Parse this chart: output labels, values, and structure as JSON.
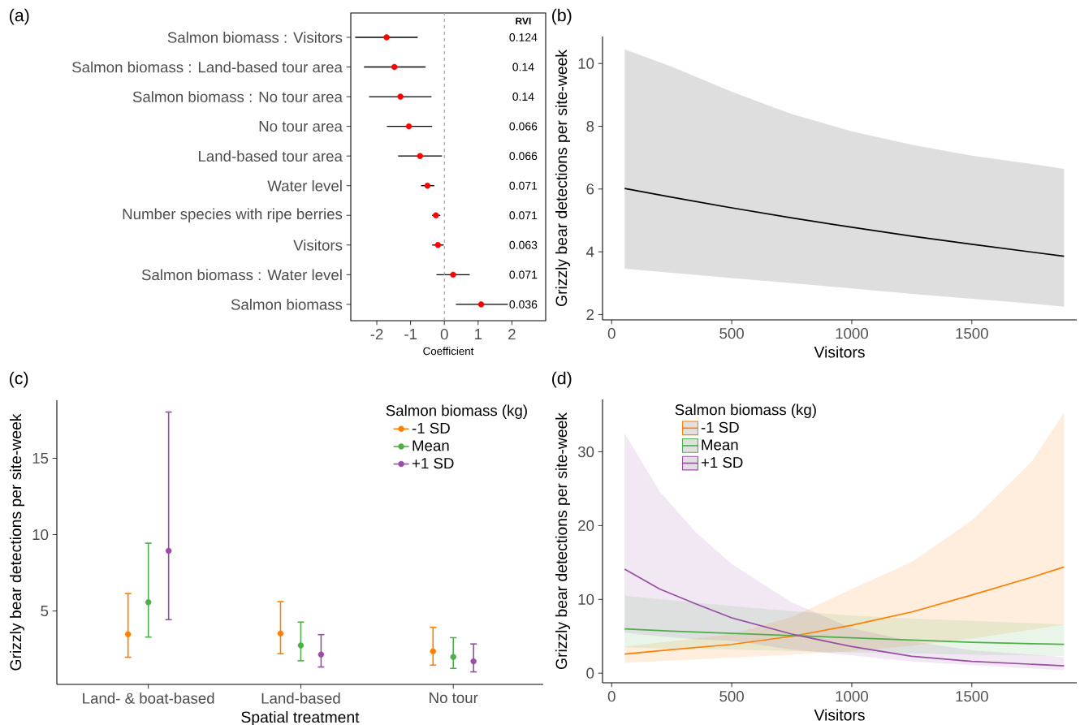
{
  "chart_data": [
    {
      "type": "scatter",
      "title": "(a)",
      "xlabel": "Coefficient",
      "orientation": "horizontal",
      "marker": "circle",
      "color": "#ff0000",
      "categories": [
        "Salmon biomass : Visitors",
        "Salmon biomass : Land-based tour area",
        "Salmon biomass : No tour area",
        "No tour area",
        "Land-based tour area",
        "Water level",
        "Number species with ripe berries",
        "Visitors",
        "Salmon biomass : Water level",
        "Salmon biomass"
      ],
      "values": [
        -1.71,
        -1.48,
        -1.3,
        -1.05,
        -0.72,
        -0.5,
        -0.25,
        -0.19,
        0.26,
        1.09
      ],
      "errors": [
        [
          -2.64,
          -0.79
        ],
        [
          -2.38,
          -0.56
        ],
        [
          -2.23,
          -0.38
        ],
        [
          -1.7,
          -0.36
        ],
        [
          -1.37,
          -0.07
        ],
        [
          -0.69,
          -0.3
        ],
        [
          -0.36,
          -0.12
        ],
        [
          -0.36,
          -0.02
        ],
        [
          -0.23,
          0.75
        ],
        [
          0.34,
          1.88
        ]
      ],
      "xlim": [
        -2.77,
        3.0
      ],
      "xticks": [
        -2,
        -1,
        0,
        1,
        2
      ],
      "ref_lines": [
        {
          "axis": "x",
          "value": 0,
          "line_style": "dashed",
          "color": "#999999"
        }
      ],
      "annotations": [
        "RVI",
        "0.124",
        "0.14",
        "0.14",
        "0.066",
        "0.066",
        "0.071",
        "0.071",
        "0.063",
        "0.071",
        "0.036"
      ]
    },
    {
      "type": "line",
      "title": "(b)",
      "xlabel": "Visitors",
      "ylabel": "Grizzly bear detections per site-week",
      "series": [
        {
          "color": "#000000",
          "x": [
            54,
            250,
            500,
            750,
            1000,
            1250,
            1500,
            1750,
            1884
          ],
          "values": [
            6.02,
            5.74,
            5.4,
            5.08,
            4.78,
            4.5,
            4.24,
            3.99,
            3.86
          ],
          "lower": [
            3.46,
            3.33,
            3.16,
            3.0,
            2.83,
            2.66,
            2.5,
            2.35,
            2.25
          ],
          "upper": [
            10.45,
            9.9,
            9.1,
            8.39,
            7.84,
            7.41,
            7.06,
            6.8,
            6.64
          ]
        }
      ],
      "xlim": [
        -38,
        1937
      ],
      "xticks": [
        0,
        500,
        1000,
        1500
      ],
      "ylim": [
        1.83,
        10.86
      ],
      "yticks": [
        2,
        4,
        6,
        8,
        10
      ]
    },
    {
      "type": "scatter",
      "title": "(c)",
      "xlabel": "Spatial treatment",
      "ylabel": "Grizzly bear detections per site-week",
      "legend_title": "Salmon biomass (kg)",
      "legend": "top right",
      "marker": "circle",
      "categories": [
        "Land- & boat-based",
        "Land-based",
        "No tour"
      ],
      "series": [
        {
          "name": "-1 SD",
          "color": "#ff7f00",
          "values": [
            3.47,
            3.52,
            2.36
          ],
          "errors": [
            [
              1.97,
              6.14
            ],
            [
              2.2,
              5.61
            ],
            [
              1.45,
              3.93
            ]
          ]
        },
        {
          "name": "Mean",
          "color": "#4daf4a",
          "values": [
            5.57,
            2.74,
            1.99
          ],
          "errors": [
            [
              3.29,
              9.44
            ],
            [
              1.74,
              4.27
            ],
            [
              1.24,
              3.25
            ]
          ]
        },
        {
          "name": "+1 SD",
          "color": "#984ea3",
          "values": [
            8.94,
            2.15,
            1.7
          ],
          "errors": [
            [
              4.43,
              18.03
            ],
            [
              1.33,
              3.45
            ],
            [
              1.01,
              2.84
            ]
          ]
        }
      ],
      "ylim": [
        0.19,
        18.8
      ],
      "yticks": [
        5,
        10,
        15
      ]
    },
    {
      "type": "line",
      "title": "(d)",
      "xlabel": "Visitors",
      "ylabel": "Grizzly bear detections per site-week",
      "legend_title": "Salmon biomass (kg)",
      "legend": "top left",
      "series": [
        {
          "name": "-1 SD",
          "color": "#ff7f00",
          "x": [
            54,
            250,
            500,
            750,
            1000,
            1250,
            1500,
            1750,
            1884
          ],
          "values": [
            2.6,
            3.2,
            3.9,
            5.0,
            6.5,
            8.3,
            10.6,
            13.0,
            14.4
          ],
          "lower": [
            1.4,
            1.7,
            2.1,
            2.5,
            3.0,
            3.7,
            4.7,
            5.9,
            6.6
          ],
          "upper": [
            3.6,
            4.3,
            5.3,
            7.6,
            11.4,
            15.1,
            20.7,
            28.7,
            35.3
          ]
        },
        {
          "name": "Mean",
          "color": "#4daf4a",
          "x": [
            54,
            250,
            500,
            750,
            1000,
            1250,
            1500,
            1750,
            1884
          ],
          "values": [
            6.0,
            5.7,
            5.4,
            5.1,
            4.8,
            4.5,
            4.2,
            4.0,
            3.9
          ],
          "lower": [
            3.5,
            3.3,
            3.2,
            3.0,
            2.8,
            2.7,
            2.5,
            2.4,
            2.3
          ],
          "upper": [
            10.5,
            9.9,
            9.1,
            8.4,
            7.8,
            7.4,
            7.1,
            6.8,
            6.6
          ]
        },
        {
          "name": "+1 SD",
          "color": "#984ea3",
          "x": [
            54,
            200,
            350,
            500,
            750,
            1000,
            1250,
            1500,
            1884
          ],
          "values": [
            14.1,
            11.4,
            9.4,
            7.5,
            5.3,
            3.6,
            2.3,
            1.6,
            1.0
          ],
          "lower": [
            5.5,
            5.0,
            4.6,
            4.4,
            3.2,
            2.4,
            1.6,
            1.1,
            0.4
          ],
          "upper": [
            32.5,
            24.6,
            19.1,
            14.8,
            9.6,
            6.1,
            4.3,
            3.1,
            2.2
          ]
        }
      ],
      "xlim": [
        -38,
        1937
      ],
      "xticks": [
        0,
        500,
        1000,
        1500
      ],
      "ylim": [
        -1.3,
        37.1
      ],
      "yticks": [
        0,
        10,
        20,
        30
      ]
    }
  ]
}
